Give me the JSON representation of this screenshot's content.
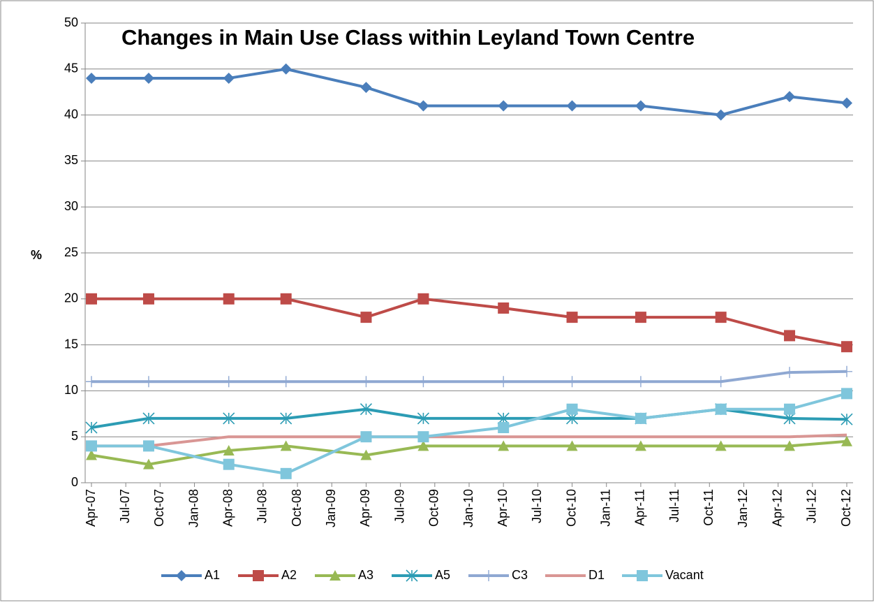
{
  "chart_data": {
    "type": "line",
    "title": "Changes in Main Use Class within Leyland Town Centre",
    "y_label": "%",
    "x": [
      "2007-04",
      "2007-09",
      "2008-04",
      "2008-09",
      "2009-04",
      "2009-09",
      "2010-04",
      "2010-10",
      "2011-04",
      "2011-11",
      "2012-05",
      "2012-10"
    ],
    "xlim": [
      "2007-04",
      "2012-10"
    ],
    "xticks": [
      {
        "value": "2007-04",
        "label": "Apr-07"
      },
      {
        "value": "2007-07",
        "label": "Jul-07"
      },
      {
        "value": "2007-10",
        "label": "Oct-07"
      },
      {
        "value": "2008-01",
        "label": "Jan-08"
      },
      {
        "value": "2008-04",
        "label": "Apr-08"
      },
      {
        "value": "2008-07",
        "label": "Jul-08"
      },
      {
        "value": "2008-10",
        "label": "Oct-08"
      },
      {
        "value": "2009-01",
        "label": "Jan-09"
      },
      {
        "value": "2009-04",
        "label": "Apr-09"
      },
      {
        "value": "2009-07",
        "label": "Jul-09"
      },
      {
        "value": "2009-10",
        "label": "Oct-09"
      },
      {
        "value": "2010-01",
        "label": "Jan-10"
      },
      {
        "value": "2010-04",
        "label": "Apr-10"
      },
      {
        "value": "2010-07",
        "label": "Jul-10"
      },
      {
        "value": "2010-10",
        "label": "Oct-10"
      },
      {
        "value": "2011-01",
        "label": "Jan-11"
      },
      {
        "value": "2011-04",
        "label": "Apr-11"
      },
      {
        "value": "2011-07",
        "label": "Jul-11"
      },
      {
        "value": "2011-10",
        "label": "Oct-11"
      },
      {
        "value": "2012-01",
        "label": "Jan-12"
      },
      {
        "value": "2012-04",
        "label": "Apr-12"
      },
      {
        "value": "2012-07",
        "label": "Jul-12"
      },
      {
        "value": "2012-10",
        "label": "Oct-12"
      }
    ],
    "ylim": [
      0,
      50
    ],
    "yticks": [
      0,
      5,
      10,
      15,
      20,
      25,
      30,
      35,
      40,
      45,
      50
    ],
    "grid": true,
    "legend": "bottom",
    "series": [
      {
        "name": "A1",
        "color": "#4a7ebb",
        "marker": "diamond",
        "values": [
          44,
          44,
          44,
          45,
          43,
          41,
          41,
          41,
          41,
          40,
          42,
          41.3
        ]
      },
      {
        "name": "A2",
        "color": "#be4b48",
        "marker": "square",
        "values": [
          20,
          20,
          20,
          20,
          18,
          20,
          19,
          18,
          18,
          18,
          16,
          14.8
        ]
      },
      {
        "name": "A3",
        "color": "#98b954",
        "marker": "triangle",
        "values": [
          3,
          2,
          3.5,
          4,
          3,
          4,
          4,
          4,
          4,
          4,
          4,
          4.5
        ]
      },
      {
        "name": "A5",
        "color": "#2c9cb4",
        "marker": "asterisk",
        "values": [
          6,
          7,
          7,
          7,
          8,
          7,
          7,
          7,
          7,
          8,
          7,
          6.9
        ]
      },
      {
        "name": "C3",
        "color": "#8fa8d2",
        "marker": "plus",
        "values": [
          11,
          11,
          11,
          11,
          11,
          11,
          11,
          11,
          11,
          11,
          12,
          12.1
        ]
      },
      {
        "name": "D1",
        "color": "#d99694",
        "marker": "none",
        "values": [
          4,
          4,
          5,
          5,
          5,
          5,
          5,
          5,
          5,
          5,
          5,
          5.2
        ]
      },
      {
        "name": "Vacant",
        "color": "#7fc6dc",
        "marker": "square",
        "values": [
          4,
          4,
          2,
          1,
          5,
          5,
          6,
          8,
          7,
          8,
          8,
          9.7
        ]
      }
    ]
  }
}
